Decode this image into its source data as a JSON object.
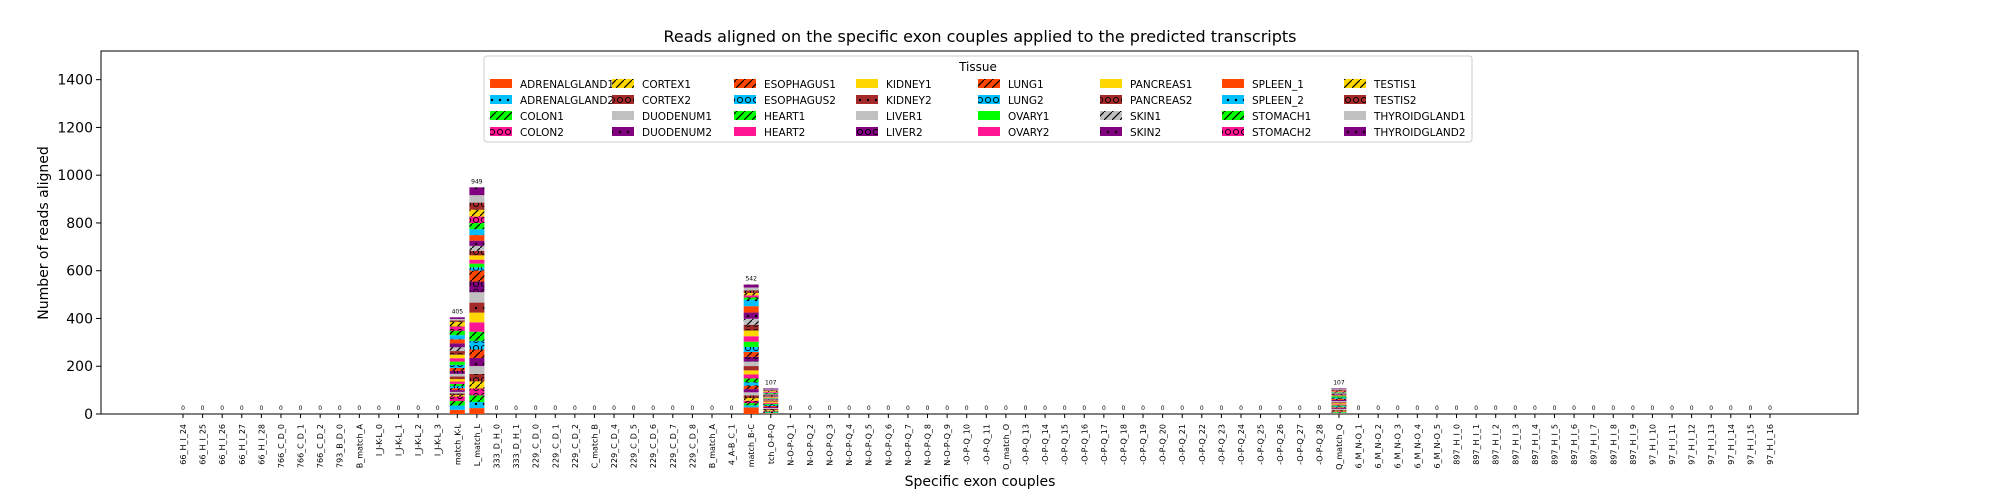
{
  "chart_data": {
    "type": "bar",
    "stacked": true,
    "title": "Reads aligned on the specific exon couples applied to the predicted transcripts",
    "xlabel": "Specific exon couples",
    "ylabel": "Number of reads aligned",
    "ylim": [
      0,
      1520
    ],
    "yticks": [
      0,
      200,
      400,
      600,
      800,
      1000,
      1200,
      1400
    ],
    "grid": false,
    "legend": {
      "title": "Tissue",
      "placement": "top-center",
      "columns": 8,
      "entries": [
        {
          "name": "ADRENALGLAND1",
          "color": "#ff4500",
          "hatch": "none"
        },
        {
          "name": "ADRENALGLAND2",
          "color": "#00bfff",
          "hatch": "dots"
        },
        {
          "name": "COLON1",
          "color": "#00ff00",
          "hatch": "slash"
        },
        {
          "name": "COLON2",
          "color": "#ff1493",
          "hatch": "circles"
        },
        {
          "name": "CORTEX1",
          "color": "#ffd700",
          "hatch": "slash"
        },
        {
          "name": "CORTEX2",
          "color": "#a52a2a",
          "hatch": "circles"
        },
        {
          "name": "DUODENUM1",
          "color": "#c0c0c0",
          "hatch": "none"
        },
        {
          "name": "DUODENUM2",
          "color": "#800080",
          "hatch": "dots"
        },
        {
          "name": "ESOPHAGUS1",
          "color": "#ff4500",
          "hatch": "slash"
        },
        {
          "name": "ESOPHAGUS2",
          "color": "#00bfff",
          "hatch": "circles"
        },
        {
          "name": "HEART1",
          "color": "#00ff00",
          "hatch": "slash"
        },
        {
          "name": "HEART2",
          "color": "#ff1493",
          "hatch": "none"
        },
        {
          "name": "KIDNEY1",
          "color": "#ffd700",
          "hatch": "none"
        },
        {
          "name": "KIDNEY2",
          "color": "#a52a2a",
          "hatch": "dots"
        },
        {
          "name": "LIVER1",
          "color": "#c0c0c0",
          "hatch": "none"
        },
        {
          "name": "LIVER2",
          "color": "#800080",
          "hatch": "circles"
        },
        {
          "name": "LUNG1",
          "color": "#ff4500",
          "hatch": "slash"
        },
        {
          "name": "LUNG2",
          "color": "#00bfff",
          "hatch": "circles"
        },
        {
          "name": "OVARY1",
          "color": "#00ff00",
          "hatch": "none"
        },
        {
          "name": "OVARY2",
          "color": "#ff1493",
          "hatch": "none"
        },
        {
          "name": "PANCREAS1",
          "color": "#ffd700",
          "hatch": "none"
        },
        {
          "name": "PANCREAS2",
          "color": "#a52a2a",
          "hatch": "circles"
        },
        {
          "name": "SKIN1",
          "color": "#c0c0c0",
          "hatch": "slash"
        },
        {
          "name": "SKIN2",
          "color": "#800080",
          "hatch": "dots"
        },
        {
          "name": "SPLEEN_1",
          "color": "#ff4500",
          "hatch": "none"
        },
        {
          "name": "SPLEEN_2",
          "color": "#00bfff",
          "hatch": "dots"
        },
        {
          "name": "STOMACH1",
          "color": "#00ff00",
          "hatch": "slash"
        },
        {
          "name": "STOMACH2",
          "color": "#ff1493",
          "hatch": "circles"
        },
        {
          "name": "TESTIS1",
          "color": "#ffd700",
          "hatch": "slash"
        },
        {
          "name": "TESTIS2",
          "color": "#a52a2a",
          "hatch": "circles"
        },
        {
          "name": "THYROIDGLAND1",
          "color": "#c0c0c0",
          "hatch": "none"
        },
        {
          "name": "THYROIDGLAND2",
          "color": "#800080",
          "hatch": "dots"
        }
      ]
    },
    "categories": [
      "66_H_I_24",
      "66_H_I_25",
      "66_H_I_26",
      "66_H_I_27",
      "66_H_I_28",
      "766_C_D_0",
      "766_C_D_1",
      "766_C_D_2",
      "793_B_D_0",
      "B_match_A",
      "I_J-K-L_0",
      "I_J-K-L_1",
      "I_J-K-L_2",
      "I_J-K-L_3",
      "match_K-L",
      "L_match_L",
      "333_D_H_0",
      "333_D_H_1",
      "229_C_D_0",
      "229_C_D_1",
      "229_C_D_2",
      "C_match_B",
      "229_C_D_4",
      "229_C_D_5",
      "229_C_D_6",
      "229_C_D_7",
      "229_C_D_8",
      "B_match_A",
      "4_A-B_C_1",
      "match_B-C",
      "tch_O-P-Q",
      "N-O-P-Q_1",
      "N-O-P-Q_2",
      "N-O-P-Q_3",
      "N-O-P-Q_4",
      "N-O-P-Q_5",
      "N-O-P-Q_6",
      "N-O-P-Q_7",
      "N-O-P-Q_8",
      "N-O-P-Q_9",
      "-O-P-Q_10",
      "-O-P-Q_11",
      "O_match_O",
      "-O-P-Q_13",
      "-O-P-Q_14",
      "-O-P-Q_15",
      "-O-P-Q_16",
      "-O-P-Q_17",
      "-O-P-Q_18",
      "-O-P-Q_19",
      "-O-P-Q_20",
      "-O-P-Q_21",
      "-O-P-Q_22",
      "-O-P-Q_23",
      "-O-P-Q_24",
      "-O-P-Q_25",
      "-O-P-Q_26",
      "-O-P-Q_27",
      "-O-P-Q_28",
      "Q_match_Q",
      "6_M_N-O_1",
      "6_M_N-O_2",
      "6_M_N-O_3",
      "6_M_N-O_4",
      "6_M_N-O_5",
      "897_H_I_0",
      "897_H_I_1",
      "897_H_I_2",
      "897_H_I_3",
      "897_H_I_4",
      "897_H_I_5",
      "897_H_I_6",
      "897_H_I_7",
      "897_H_I_8",
      "897_H_I_9",
      "97_H_I_10",
      "97_H_I_11",
      "97_H_I_12",
      "97_H_I_13",
      "97_H_I_14",
      "97_H_I_15",
      "97_H_I_16"
    ],
    "totals": [
      0,
      0,
      0,
      0,
      0,
      0,
      0,
      0,
      0,
      0,
      0,
      0,
      0,
      0,
      405,
      949,
      0,
      0,
      0,
      0,
      0,
      0,
      0,
      0,
      0,
      0,
      0,
      0,
      0,
      542,
      107,
      0,
      0,
      0,
      0,
      0,
      0,
      0,
      0,
      0,
      0,
      0,
      0,
      0,
      0,
      0,
      0,
      0,
      0,
      0,
      0,
      0,
      0,
      0,
      0,
      0,
      0,
      0,
      0,
      107,
      0,
      0,
      0,
      0,
      0,
      0,
      0,
      0,
      0,
      0,
      0,
      0,
      0,
      0,
      0,
      0,
      0,
      0,
      0,
      0,
      0,
      0
    ],
    "total_labels": [
      "0",
      "0",
      "0",
      "0",
      "0",
      "0",
      "0",
      "0",
      "0",
      "0",
      "0",
      "0",
      "0",
      "0",
      "405",
      "949",
      "0",
      "0",
      "0",
      "0",
      "0",
      "0",
      "0",
      "0",
      "0",
      "0",
      "0",
      "0",
      "0",
      "542",
      "107",
      "0",
      "0",
      "0",
      "0",
      "0",
      "0",
      "0",
      "0",
      "0",
      "0",
      "0",
      "0",
      "0",
      "0",
      "0",
      "0",
      "0",
      "0",
      "0",
      "0",
      "0",
      "0",
      "0",
      "0",
      "0",
      "0",
      "0",
      "0",
      "107",
      "0",
      "0",
      "0",
      "0",
      "0",
      "0",
      "0",
      "0",
      "0",
      "0",
      "0",
      "0",
      "0",
      "0",
      "0",
      "0",
      "0",
      "0",
      "0",
      "0",
      "0",
      "0"
    ]
  }
}
